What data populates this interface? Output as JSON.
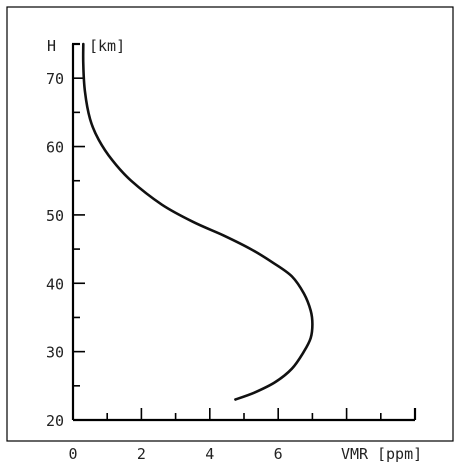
{
  "chart_data": {
    "type": "line",
    "title": "",
    "ylabel": "H",
    "ylabel_unit": "[km]",
    "xlabel": "VMR",
    "xlabel_unit": "[ppm]",
    "xlim": [
      0,
      10
    ],
    "ylim": [
      20,
      75
    ],
    "x_ticks": [
      0,
      2,
      4,
      6
    ],
    "x_tick_labels": [
      "0",
      "2",
      "4",
      "6"
    ],
    "y_ticks": [
      20,
      30,
      40,
      50,
      60,
      70
    ],
    "y_tick_labels": [
      "20",
      "30",
      "40",
      "50",
      "60",
      "70"
    ],
    "grid": false,
    "series": [
      {
        "x": [
          4.75,
          5.3,
          5.9,
          6.4,
          6.75,
          6.95,
          7.0,
          6.95,
          6.75,
          6.4,
          5.85,
          5.2,
          4.4,
          3.5,
          2.6,
          1.7,
          1.15,
          0.75,
          0.5,
          0.35,
          0.3,
          0.3
        ],
        "y": [
          23,
          24,
          25.5,
          27.5,
          30,
          32,
          34,
          36,
          38.5,
          41,
          43,
          45,
          47,
          49,
          51.5,
          55,
          58,
          61,
          64,
          68,
          72,
          75
        ]
      }
    ]
  }
}
